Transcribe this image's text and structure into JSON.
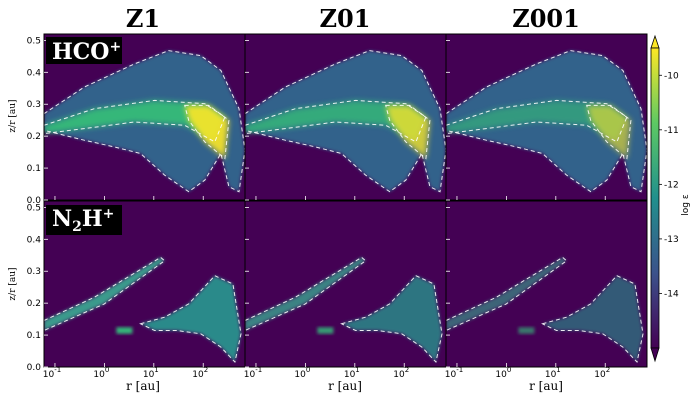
{
  "chart_data": {
    "type": "heatmap",
    "columns": [
      "Z1",
      "Z01",
      "Z001"
    ],
    "rows": [
      {
        "species_main": "HCO",
        "species_sup": "+",
        "species_sub": ""
      },
      {
        "species_main": "N",
        "species_sub": "2",
        "species_main2": "H",
        "species_sup": "+"
      }
    ],
    "xlabel": "r [au]",
    "ylabel": "z/r [au]",
    "x_scale": "log",
    "x_ticks": [
      {
        "value": 0.1,
        "base": "10",
        "exp": "-1"
      },
      {
        "value": 1,
        "base": "10",
        "exp": "0"
      },
      {
        "value": 10,
        "base": "10",
        "exp": "1"
      },
      {
        "value": 100,
        "base": "10",
        "exp": "2"
      }
    ],
    "xlim": [
      0.06,
      700
    ],
    "y_ticks": [
      "0.0",
      "0.1",
      "0.2",
      "0.3",
      "0.4",
      "0.5"
    ],
    "ylim": [
      0.0,
      0.52
    ],
    "colorbar": {
      "label": "log ε",
      "ticks": [
        "-10",
        "-11",
        "-12",
        "-13",
        "-14"
      ],
      "range": [
        -15,
        -9.5
      ],
      "colors": [
        "#440154",
        "#3b528b",
        "#21908d",
        "#5dc963",
        "#fde725"
      ]
    },
    "contour_style": "white dashed",
    "background_color": "#440154"
  }
}
